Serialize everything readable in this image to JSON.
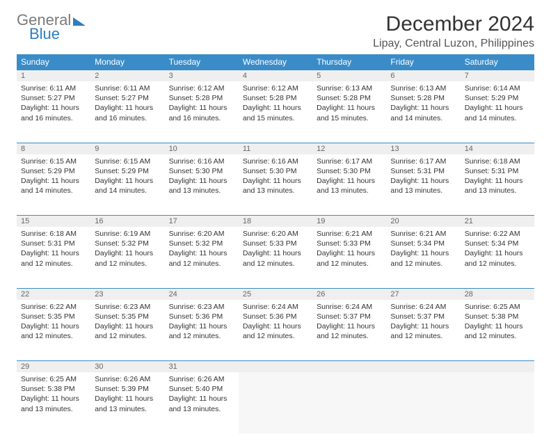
{
  "logo": {
    "word1": "General",
    "word2": "Blue"
  },
  "title": "December 2024",
  "location": "Lipay, Central Luzon, Philippines",
  "colors": {
    "header_bg": "#3a8cc9",
    "header_fg": "#ffffff",
    "daynum_bg": "#efefef",
    "rule": "#3a8cc9",
    "logo_gray": "#7a7a7a",
    "logo_blue": "#2f7ec0",
    "page_bg": "#ffffff"
  },
  "typography": {
    "title_fontsize": 30,
    "location_fontsize": 16,
    "weekday_fontsize": 12,
    "cell_fontsize": 10.5
  },
  "weekdays": [
    "Sunday",
    "Monday",
    "Tuesday",
    "Wednesday",
    "Thursday",
    "Friday",
    "Saturday"
  ],
  "days": [
    {
      "n": 1,
      "sunrise": "6:11 AM",
      "sunset": "5:27 PM",
      "daylight": "11 hours and 16 minutes."
    },
    {
      "n": 2,
      "sunrise": "6:11 AM",
      "sunset": "5:27 PM",
      "daylight": "11 hours and 16 minutes."
    },
    {
      "n": 3,
      "sunrise": "6:12 AM",
      "sunset": "5:28 PM",
      "daylight": "11 hours and 16 minutes."
    },
    {
      "n": 4,
      "sunrise": "6:12 AM",
      "sunset": "5:28 PM",
      "daylight": "11 hours and 15 minutes."
    },
    {
      "n": 5,
      "sunrise": "6:13 AM",
      "sunset": "5:28 PM",
      "daylight": "11 hours and 15 minutes."
    },
    {
      "n": 6,
      "sunrise": "6:13 AM",
      "sunset": "5:28 PM",
      "daylight": "11 hours and 14 minutes."
    },
    {
      "n": 7,
      "sunrise": "6:14 AM",
      "sunset": "5:29 PM",
      "daylight": "11 hours and 14 minutes."
    },
    {
      "n": 8,
      "sunrise": "6:15 AM",
      "sunset": "5:29 PM",
      "daylight": "11 hours and 14 minutes."
    },
    {
      "n": 9,
      "sunrise": "6:15 AM",
      "sunset": "5:29 PM",
      "daylight": "11 hours and 14 minutes."
    },
    {
      "n": 10,
      "sunrise": "6:16 AM",
      "sunset": "5:30 PM",
      "daylight": "11 hours and 13 minutes."
    },
    {
      "n": 11,
      "sunrise": "6:16 AM",
      "sunset": "5:30 PM",
      "daylight": "11 hours and 13 minutes."
    },
    {
      "n": 12,
      "sunrise": "6:17 AM",
      "sunset": "5:30 PM",
      "daylight": "11 hours and 13 minutes."
    },
    {
      "n": 13,
      "sunrise": "6:17 AM",
      "sunset": "5:31 PM",
      "daylight": "11 hours and 13 minutes."
    },
    {
      "n": 14,
      "sunrise": "6:18 AM",
      "sunset": "5:31 PM",
      "daylight": "11 hours and 13 minutes."
    },
    {
      "n": 15,
      "sunrise": "6:18 AM",
      "sunset": "5:31 PM",
      "daylight": "11 hours and 12 minutes."
    },
    {
      "n": 16,
      "sunrise": "6:19 AM",
      "sunset": "5:32 PM",
      "daylight": "11 hours and 12 minutes."
    },
    {
      "n": 17,
      "sunrise": "6:20 AM",
      "sunset": "5:32 PM",
      "daylight": "11 hours and 12 minutes."
    },
    {
      "n": 18,
      "sunrise": "6:20 AM",
      "sunset": "5:33 PM",
      "daylight": "11 hours and 12 minutes."
    },
    {
      "n": 19,
      "sunrise": "6:21 AM",
      "sunset": "5:33 PM",
      "daylight": "11 hours and 12 minutes."
    },
    {
      "n": 20,
      "sunrise": "6:21 AM",
      "sunset": "5:34 PM",
      "daylight": "11 hours and 12 minutes."
    },
    {
      "n": 21,
      "sunrise": "6:22 AM",
      "sunset": "5:34 PM",
      "daylight": "11 hours and 12 minutes."
    },
    {
      "n": 22,
      "sunrise": "6:22 AM",
      "sunset": "5:35 PM",
      "daylight": "11 hours and 12 minutes."
    },
    {
      "n": 23,
      "sunrise": "6:23 AM",
      "sunset": "5:35 PM",
      "daylight": "11 hours and 12 minutes."
    },
    {
      "n": 24,
      "sunrise": "6:23 AM",
      "sunset": "5:36 PM",
      "daylight": "11 hours and 12 minutes."
    },
    {
      "n": 25,
      "sunrise": "6:24 AM",
      "sunset": "5:36 PM",
      "daylight": "11 hours and 12 minutes."
    },
    {
      "n": 26,
      "sunrise": "6:24 AM",
      "sunset": "5:37 PM",
      "daylight": "11 hours and 12 minutes."
    },
    {
      "n": 27,
      "sunrise": "6:24 AM",
      "sunset": "5:37 PM",
      "daylight": "11 hours and 12 minutes."
    },
    {
      "n": 28,
      "sunrise": "6:25 AM",
      "sunset": "5:38 PM",
      "daylight": "11 hours and 12 minutes."
    },
    {
      "n": 29,
      "sunrise": "6:25 AM",
      "sunset": "5:38 PM",
      "daylight": "11 hours and 13 minutes."
    },
    {
      "n": 30,
      "sunrise": "6:26 AM",
      "sunset": "5:39 PM",
      "daylight": "11 hours and 13 minutes."
    },
    {
      "n": 31,
      "sunrise": "6:26 AM",
      "sunset": "5:40 PM",
      "daylight": "11 hours and 13 minutes."
    }
  ],
  "grid": {
    "first_weekday_index": 0,
    "weeks": 5,
    "total_cells": 35
  },
  "labels": {
    "sunrise": "Sunrise:",
    "sunset": "Sunset:",
    "daylight": "Daylight:"
  }
}
